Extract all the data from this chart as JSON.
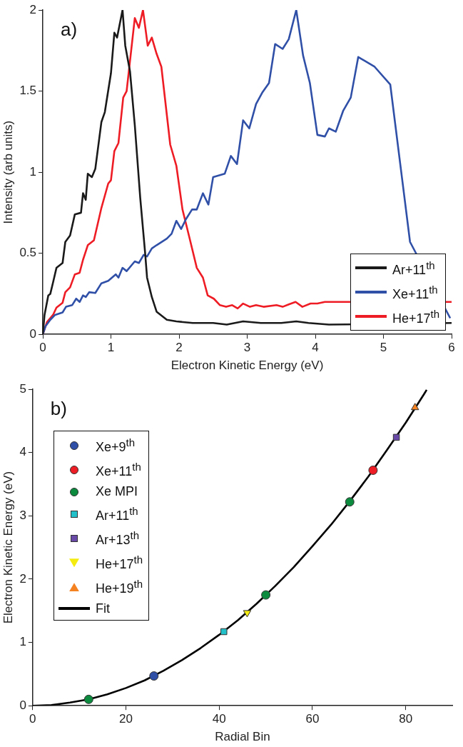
{
  "chart_data": [
    {
      "type": "line",
      "xlabel": "Electron Kinetic Energy (eV)",
      "ylabel": "Intensity (arb units)",
      "annotations": [
        "a)"
      ],
      "xlim": [
        0,
        6
      ],
      "xticks": [
        0,
        1,
        2,
        3,
        4,
        5,
        6
      ],
      "ylim": [
        0,
        2
      ],
      "yticks": [
        0,
        0.5,
        1,
        1.5,
        2
      ],
      "legend": "bottom right",
      "series": [
        {
          "name": "Ar+11$^{th}$",
          "color": "#1a1a1a",
          "x": [
            0,
            0.025,
            0.08,
            0.11,
            0.15,
            0.2,
            0.29,
            0.33,
            0.4,
            0.47,
            0.56,
            0.59,
            0.63,
            0.66,
            0.72,
            0.77,
            0.86,
            0.91,
            1.0,
            1.05,
            1.09,
            1.17,
            1.21,
            1.28,
            1.35,
            1.43,
            1.5,
            1.53,
            1.6,
            1.67,
            1.82,
            1.96,
            2.2,
            2.5,
            2.7,
            2.94,
            3.2,
            3.5,
            3.72,
            3.9,
            4.2,
            6
          ],
          "values": [
            0,
            0.12,
            0.24,
            0.25,
            0.32,
            0.41,
            0.44,
            0.57,
            0.61,
            0.74,
            0.75,
            0.87,
            0.83,
            0.99,
            0.97,
            1.02,
            1.31,
            1.37,
            1.61,
            1.86,
            1.83,
            2.0,
            1.78,
            1.62,
            1.29,
            0.84,
            0.51,
            0.35,
            0.23,
            0.14,
            0.09,
            0.08,
            0.07,
            0.07,
            0.06,
            0.08,
            0.07,
            0.07,
            0.08,
            0.07,
            0.06,
            0.07
          ]
        },
        {
          "name": "Xe+11$^{th}$",
          "color": "#3050a8",
          "x": [
            0,
            0.04,
            0.11,
            0.18,
            0.29,
            0.34,
            0.43,
            0.49,
            0.54,
            0.59,
            0.63,
            0.68,
            0.77,
            0.86,
            0.96,
            1.07,
            1.11,
            1.17,
            1.23,
            1.35,
            1.41,
            1.48,
            1.53,
            1.6,
            1.67,
            1.82,
            1.89,
            1.96,
            2.03,
            2.1,
            2.19,
            2.26,
            2.35,
            2.43,
            2.5,
            2.67,
            2.76,
            2.85,
            2.94,
            3.03,
            3.13,
            3.22,
            3.32,
            3.41,
            3.52,
            3.61,
            3.72,
            3.82,
            3.92,
            4.03,
            4.14,
            4.2,
            4.3,
            4.41,
            4.52,
            4.63,
            4.87,
            5.1,
            5.39,
            5.98
          ],
          "values": [
            0,
            0.05,
            0.09,
            0.12,
            0.135,
            0.17,
            0.18,
            0.22,
            0.2,
            0.24,
            0.23,
            0.26,
            0.255,
            0.315,
            0.33,
            0.37,
            0.35,
            0.41,
            0.39,
            0.45,
            0.44,
            0.49,
            0.48,
            0.53,
            0.55,
            0.59,
            0.62,
            0.7,
            0.65,
            0.71,
            0.77,
            0.77,
            0.87,
            0.8,
            0.97,
            0.99,
            1.1,
            1.05,
            1.32,
            1.27,
            1.42,
            1.49,
            1.55,
            1.79,
            1.76,
            1.82,
            2.0,
            1.72,
            1.55,
            1.23,
            1.22,
            1.27,
            1.25,
            1.38,
            1.46,
            1.71,
            1.65,
            1.54,
            0.57,
            0.1
          ]
        },
        {
          "name": "He+17$^{th}$",
          "color": "#ee1c24",
          "x": [
            0,
            0.06,
            0.15,
            0.2,
            0.29,
            0.33,
            0.4,
            0.47,
            0.54,
            0.59,
            0.66,
            0.75,
            0.86,
            0.96,
            1.0,
            1.05,
            1.11,
            1.18,
            1.23,
            1.35,
            1.41,
            1.47,
            1.54,
            1.6,
            1.67,
            1.74,
            1.87,
            1.96,
            2.05,
            2.15,
            2.26,
            2.35,
            2.42,
            2.51,
            2.6,
            2.69,
            2.78,
            2.86,
            2.94,
            3.04,
            3.13,
            3.24,
            3.43,
            3.52,
            3.61,
            3.71,
            3.81,
            3.93,
            4.03,
            4.14,
            6
          ],
          "values": [
            0,
            0.075,
            0.12,
            0.165,
            0.195,
            0.26,
            0.29,
            0.37,
            0.38,
            0.46,
            0.55,
            0.58,
            0.78,
            0.93,
            0.95,
            1.13,
            1.18,
            1.46,
            1.5,
            1.95,
            1.89,
            2.0,
            1.78,
            1.83,
            1.73,
            1.65,
            1.17,
            1.04,
            0.77,
            0.6,
            0.41,
            0.35,
            0.24,
            0.22,
            0.18,
            0.17,
            0.18,
            0.16,
            0.19,
            0.17,
            0.18,
            0.17,
            0.18,
            0.17,
            0.185,
            0.2,
            0.17,
            0.19,
            0.19,
            0.2,
            0.2
          ]
        }
      ]
    },
    {
      "type": "scatter",
      "xlabel": "Radial Bin",
      "ylabel": "Electron Kinetic Energy (eV)",
      "annotations": [
        "b)"
      ],
      "xlim": [
        0,
        90
      ],
      "xticks": [
        0,
        20,
        40,
        60,
        80
      ],
      "ylim": [
        0,
        5
      ],
      "yticks": [
        0,
        1,
        2,
        3,
        4,
        5
      ],
      "legend": "top left",
      "series": [
        {
          "name": "Xe+9$^{th}$",
          "color": "#3050a8",
          "marker": "circle",
          "x": [
            26
          ],
          "values": [
            0.47
          ]
        },
        {
          "name": "Xe+11$^{th}$",
          "color": "#ee1c24",
          "marker": "circle",
          "x": [
            73
          ],
          "values": [
            3.72
          ]
        },
        {
          "name": "Xe MPI",
          "color": "#0c8a3e",
          "marker": "circle",
          "x": [
            12,
            50,
            68
          ],
          "values": [
            0.1,
            1.75,
            3.22
          ]
        },
        {
          "name": "Ar+11$^{th}$",
          "color": "#22c0c8",
          "marker": "square",
          "x": [
            41
          ],
          "values": [
            1.17
          ]
        },
        {
          "name": "Ar+13$^{th}$",
          "color": "#6a4aa8",
          "marker": "square",
          "x": [
            78
          ],
          "values": [
            4.24
          ]
        },
        {
          "name": "He+17$^{th}$",
          "color": "#f4ec10",
          "marker": "triangle-down",
          "x": [
            46
          ],
          "values": [
            1.47
          ]
        },
        {
          "name": "He+19$^{th}$",
          "color": "#f58220",
          "marker": "triangle",
          "x": [
            82
          ],
          "values": [
            4.71
          ]
        },
        {
          "name": "Fit",
          "color": "#000000",
          "type": "line",
          "marker": "none",
          "x": [
            0,
            4,
            8,
            12,
            16,
            20,
            24,
            28,
            32,
            36,
            40,
            44,
            48,
            52,
            56,
            60,
            64,
            68,
            72,
            76,
            80,
            84,
            84.5
          ],
          "values": [
            0,
            0.01,
            0.05,
            0.1,
            0.18,
            0.28,
            0.4,
            0.55,
            0.72,
            0.91,
            1.12,
            1.35,
            1.61,
            1.89,
            2.19,
            2.52,
            2.86,
            3.23,
            3.62,
            4.04,
            4.47,
            4.93,
            4.99
          ]
        }
      ]
    }
  ]
}
